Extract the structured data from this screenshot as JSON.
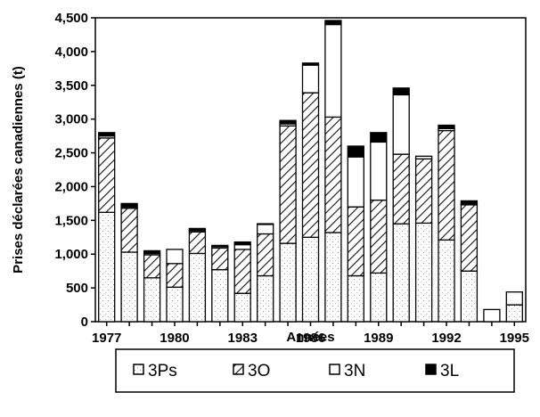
{
  "chart_data": {
    "type": "bar",
    "stacked": true,
    "title": "",
    "xlabel": "Années",
    "ylabel": "Prises déclarées canadiennes (t)",
    "ylim": [
      0,
      4500
    ],
    "yticks": [
      "0",
      "500",
      "1,000",
      "1,500",
      "2,000",
      "2,500",
      "3,000",
      "3,500",
      "4,000",
      "4,500"
    ],
    "xtick_labels": [
      "1977",
      "1980",
      "1983",
      "1986",
      "1989",
      "1992",
      "1995"
    ],
    "categories": [
      "1977",
      "1978",
      "1979",
      "1980",
      "1981",
      "1982",
      "1983",
      "1984",
      "1985",
      "1986",
      "1987",
      "1988",
      "1989",
      "1990",
      "1991",
      "1992",
      "1993",
      "1994",
      "1995"
    ],
    "series": [
      {
        "name": "3Ps",
        "pattern": "dotted",
        "values": [
          1620,
          1030,
          650,
          510,
          1010,
          770,
          420,
          680,
          1160,
          1250,
          1320,
          680,
          720,
          1450,
          1460,
          1210,
          750,
          0,
          250
        ]
      },
      {
        "name": "3O",
        "pattern": "hatched",
        "values": [
          1100,
          650,
          340,
          350,
          320,
          320,
          650,
          620,
          1740,
          2140,
          1710,
          1020,
          1080,
          1030,
          950,
          1620,
          980,
          0,
          0
        ]
      },
      {
        "name": "3N",
        "pattern": "white",
        "values": [
          30,
          20,
          20,
          210,
          20,
          20,
          70,
          140,
          30,
          410,
          1370,
          740,
          860,
          880,
          40,
          30,
          10,
          180,
          190
        ]
      },
      {
        "name": "3L",
        "pattern": "black",
        "values": [
          50,
          50,
          40,
          0,
          30,
          20,
          40,
          10,
          50,
          30,
          60,
          160,
          140,
          100,
          0,
          50,
          50,
          0,
          0
        ]
      }
    ],
    "legend": {
      "placement": "bottom",
      "items": [
        "3Ps",
        "3O",
        "3N",
        "3L"
      ]
    },
    "grid": false
  }
}
